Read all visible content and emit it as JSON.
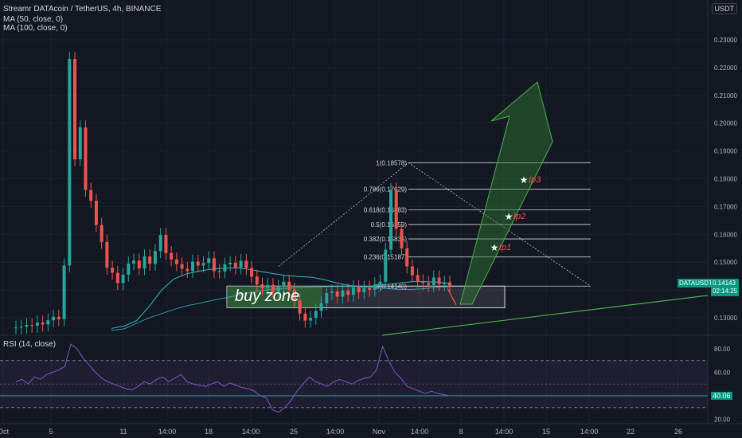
{
  "header": {
    "title": "Streamr DATAcoin / TetherUS, 4h, BINANCE",
    "ma50": "MA (50, close, 0)",
    "ma100": "MA (100, close, 0)",
    "currency_badge": "USDT"
  },
  "price_tag": {
    "symbol": "DATAUSDT",
    "price": "0.14143",
    "countdown": "02:14:25"
  },
  "rsi": {
    "legend": "RSI (14, close)",
    "current_value": "40.06",
    "levels": [
      80.0,
      60.0,
      40.0,
      20.0
    ],
    "overbought": 70,
    "oversold": 30,
    "band_color": "#7e57c2"
  },
  "colors": {
    "up": "#26a69a",
    "down": "#ef5350",
    "ma": "#2dbcc4",
    "fib": "#d1d4dc",
    "buy_zone_fill": "#2e7d32",
    "arrow_fill": "#2e7d32",
    "tp_text": "#ef5350",
    "trend_line": "#4caf50",
    "rsi_line": "#7e57c2",
    "background": "#131722"
  },
  "annotations": {
    "buy_zone": "buy zone",
    "tp1": "tp1",
    "tp2": "tp2",
    "tp3": "tp3"
  },
  "chart_data": {
    "type": "line",
    "title": "Streamr DATAcoin / TetherUS, 4h, BINANCE",
    "y_axis_ticks": [
      "0.23000",
      "0.22000",
      "0.21000",
      "0.20000",
      "0.19000",
      "0.18000",
      "0.17000",
      "0.16000",
      "0.15000",
      "0.14000",
      "0.13000"
    ],
    "ylim": [
      0.124,
      0.234
    ],
    "x_axis_ticks": [
      "Oct",
      "5",
      "11",
      "14:00",
      "18",
      "14:00",
      "25",
      "14:00",
      "Nov",
      "14:00",
      "8",
      "14:00",
      "15",
      "14:00",
      "22",
      "26"
    ],
    "fib_levels": [
      {
        "label": "1(0.18578)",
        "value": 0.18578
      },
      {
        "label": "0.786(0.17629)",
        "value": 0.17629
      },
      {
        "label": "0.618(0.16883)",
        "value": 0.16883
      },
      {
        "label": "0.5(0.16359)",
        "value": 0.16359
      },
      {
        "label": "0.382(0.15835)",
        "value": 0.15835
      },
      {
        "label": "0.236(0.15187)",
        "value": 0.15187
      },
      {
        "label": "0(0.14140)",
        "value": 0.1414
      }
    ],
    "buy_zone_range": [
      0.1336,
      0.1414
    ],
    "series": [
      {
        "name": "DATAUSDT",
        "values": [
          0.1265,
          0.1268,
          0.1274,
          0.1271,
          0.1283,
          0.1276,
          0.1291,
          0.1304,
          0.1295,
          0.1488,
          0.2231,
          0.187,
          0.1985,
          0.176,
          0.1721,
          0.1634,
          0.1573,
          0.148,
          0.1462,
          0.1425,
          0.1455,
          0.1495,
          0.1506,
          0.1478,
          0.1521,
          0.1494,
          0.154,
          0.1598,
          0.1533,
          0.151,
          0.1493,
          0.1476,
          0.1468,
          0.1502,
          0.1488,
          0.1497,
          0.1514,
          0.1468,
          0.1466,
          0.1492,
          0.1498,
          0.1481,
          0.1505,
          0.1479,
          0.1448,
          0.142,
          0.1406,
          0.1418,
          0.1394,
          0.1412,
          0.143,
          0.1401,
          0.1362,
          0.1315,
          0.129,
          0.13,
          0.1325,
          0.1352,
          0.1389,
          0.1395,
          0.1376,
          0.1398,
          0.1383,
          0.141,
          0.1392,
          0.1408,
          0.1401,
          0.142,
          0.143,
          0.1545,
          0.176,
          0.162,
          0.155,
          0.1485,
          0.1453,
          0.1432,
          0.1425,
          0.1418,
          0.1445,
          0.1421,
          0.1427,
          0.1414
        ]
      },
      {
        "name": "MA (50, close, 0)",
        "values": [
          0.1262,
          0.127,
          0.129,
          0.134,
          0.14,
          0.144,
          0.1458,
          0.1468,
          0.1475,
          0.1478,
          0.148,
          0.1474,
          0.1466,
          0.1458,
          0.1452,
          0.1448,
          0.1446,
          0.1437,
          0.1425,
          0.1416,
          0.1412,
          0.1414,
          0.142,
          0.1425,
          0.143,
          0.143,
          0.1428,
          0.1424
        ]
      },
      {
        "name": "MA (100, close, 0)",
        "values": [
          0.1255,
          0.126,
          0.128,
          0.13,
          0.1315,
          0.133,
          0.1343,
          0.1352,
          0.1362,
          0.1371,
          0.138,
          0.139,
          0.1398,
          0.1403,
          0.1406,
          0.1409,
          0.1411,
          0.1412,
          0.1413,
          0.1413,
          0.1412,
          0.141,
          0.1405,
          0.1402,
          0.1402,
          0.1405,
          0.141,
          0.1412
        ]
      },
      {
        "name": "RSI (14, close)",
        "values": [
          52,
          54,
          50,
          56,
          54,
          58,
          60,
          62,
          65,
          84,
          80,
          72,
          66,
          60,
          55,
          52,
          50,
          48,
          46,
          45,
          48,
          52,
          50,
          54,
          56,
          52,
          55,
          58,
          52,
          50,
          49,
          48,
          50,
          52,
          48,
          51,
          49,
          47,
          46,
          44,
          40,
          38,
          28,
          26,
          30,
          36,
          44,
          50,
          56,
          52,
          50,
          48,
          52,
          54,
          52,
          50,
          53,
          55,
          56,
          62,
          82,
          70,
          60,
          55,
          48,
          46,
          44,
          42,
          44,
          42,
          41,
          40
        ]
      }
    ]
  }
}
